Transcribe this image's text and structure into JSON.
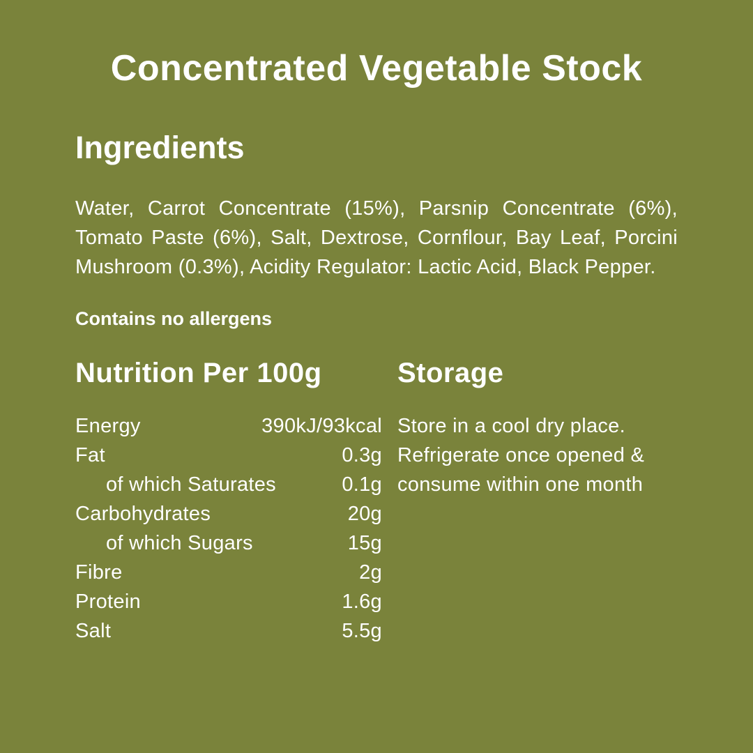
{
  "colors": {
    "background": "#7A833B",
    "text": "#FFFFFF"
  },
  "title": "Concentrated Vegetable Stock",
  "ingredients": {
    "heading": "Ingredients",
    "text": "Water, Carrot Concentrate (15%), Parsnip Concentrate (6%), Tomato Paste (6%), Salt, Dextrose, Cornflour, Bay Leaf, Porcini Mushroom (0.3%), Acidity Regulator: Lactic Acid, Black Pepper.",
    "allergen_note": "Contains no allergens"
  },
  "nutrition": {
    "heading": "Nutrition Per 100g",
    "rows": [
      {
        "label": "Energy",
        "value": "390kJ/93kcal"
      },
      {
        "label": "Fat",
        "value": "0.3g"
      },
      {
        "label": "of which Saturates",
        "value": "0.1g"
      },
      {
        "label": "Carbohydrates",
        "value": "20g"
      },
      {
        "label": "of which Sugars",
        "value": "15g"
      },
      {
        "label": "Fibre",
        "value": "2g"
      },
      {
        "label": "Protein",
        "value": "1.6g"
      },
      {
        "label": "Salt",
        "value": "5.5g"
      }
    ]
  },
  "storage": {
    "heading": "Storage",
    "lines": [
      "Store in a cool dry place.",
      "Refrigerate once opened &",
      "consume within one month"
    ]
  }
}
